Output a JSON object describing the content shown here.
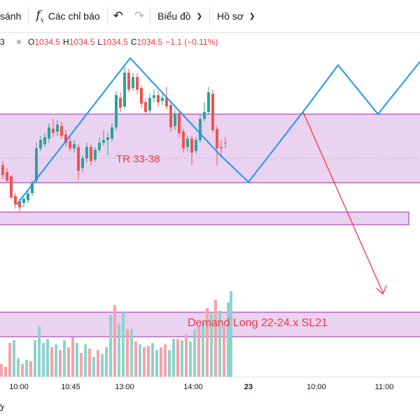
{
  "toolbar": {
    "compare_label": "sánh",
    "indicators_icon": "function-fx-icon",
    "indicators_label": "Các chỉ báo",
    "undo_icon": "undo-arrow-icon",
    "redo_icon": "redo-arrow-icon",
    "chart_type_label": "Biểu đồ",
    "profile_label": "Hồ sơ"
  },
  "legend": {
    "symbol_fragment": "3",
    "open_key": "O",
    "open": "1034.5",
    "high_key": "H",
    "high": "1034.5",
    "low_key": "L",
    "low": "1034.5",
    "close_key": "C",
    "close": "1034.5",
    "change": "−1.1 (−0.11%)"
  },
  "annotations": {
    "range_zone_label": "TR 33-38",
    "demand_zone_label": "Demand Long 22-24.x SL21"
  },
  "time_axis": {
    "ticks": [
      {
        "label": "10:00",
        "bold": false
      },
      {
        "label": "10:45",
        "bold": false
      },
      {
        "label": "13:00",
        "bold": false
      },
      {
        "label": "14:00",
        "bold": false
      },
      {
        "label": "23",
        "bold": true
      },
      {
        "label": "10:00",
        "bold": false
      },
      {
        "label": "11:00",
        "bold": false
      }
    ]
  },
  "footer": {
    "text": "ớ"
  },
  "colors": {
    "up": "#26a69a",
    "down": "#ef5350",
    "zone_fill": "#ead2f1",
    "zone_border": "#9c27b0",
    "projection_line": "#2196f3",
    "projection_arrow": "#f23645",
    "volume_up": "#8fd3cd",
    "volume_down": "#f5a3a7"
  },
  "chart_data": {
    "type": "candlestick",
    "last_price": 1034.5,
    "candles_visible": 59,
    "volume_bars_visible": true
  }
}
